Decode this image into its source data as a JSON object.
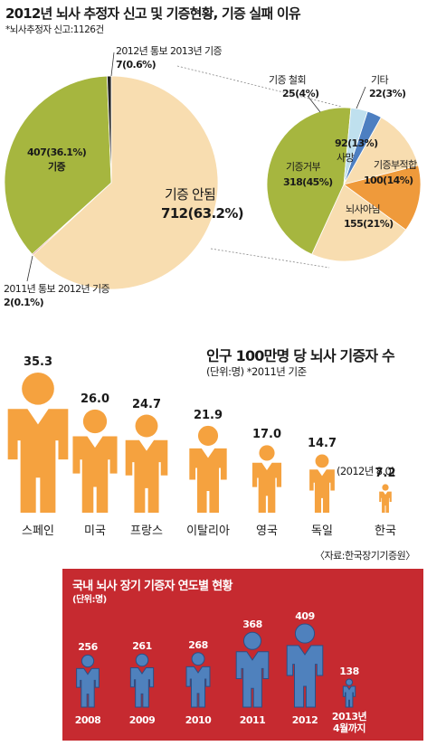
{
  "header": {
    "title": "2012년 뇌사 추정자 신고 및 기증현황, 기증 실패 이유",
    "subtitle": "*뇌사추정자 신고:1126건"
  },
  "colors": {
    "green": "#a6b63f",
    "peach": "#f8ddb0",
    "black": "#222222",
    "red": "#d2452c",
    "lightblue": "#bfe0ee",
    "blue": "#4d7fc1",
    "orange": "#ef9a3b",
    "figure_orange": "#f5a23f",
    "figure_blue": "#4f81bd",
    "banner_red": "#c62a30"
  },
  "labels": {
    "main": {
      "donated_value": "407(36.1%)",
      "donated_name": "기증",
      "not_donated_name": "기증 안됨",
      "not_donated_value": "712(63.2%)",
      "reported_2012_line1": "2012년 통보 2013년 기증",
      "reported_2012_line2": "7(0.6%)",
      "reported_2011_line1": "2011년 통보 2012년 기증",
      "reported_2011_line2": "2(0.1%)"
    },
    "sub": {
      "withdrawn_name": "기증 철회",
      "withdrawn_value": "25(4%)",
      "other_name": "기타",
      "other_value": "22(3%)",
      "death_value": "92(13%)",
      "death_name": "사망",
      "unfit_name": "기증부적합",
      "unfit_value": "100(14%)",
      "refusal_name": "기증거부",
      "refusal_value": "318(45%)",
      "notbd_name": "뇌사아님",
      "notbd_value": "155(21%)"
    }
  },
  "chart_data": [
    {
      "type": "pie",
      "title": "2012년 뇌사 추정자 신고 및 기증현황",
      "slices": [
        {
          "label": "기증 안됨",
          "value": 712,
          "percent": 63.2,
          "color": "#f8ddb0"
        },
        {
          "label": "2011년 통보 2012년 기증",
          "value": 2,
          "percent": 0.1,
          "color": "#d2452c"
        },
        {
          "label": "기증",
          "value": 407,
          "percent": 36.1,
          "color": "#a6b63f"
        },
        {
          "label": "2012년 통보 2013년 기증",
          "value": 7,
          "percent": 0.6,
          "color": "#222222"
        }
      ]
    },
    {
      "type": "pie",
      "title": "기증 실패 이유",
      "slices": [
        {
          "label": "기타",
          "value": 22,
          "percent": 3,
          "color": "#4d7fc1"
        },
        {
          "label": "사망",
          "value": 92,
          "percent": 13,
          "color": "#f8ddb0"
        },
        {
          "label": "기증부적합",
          "value": 100,
          "percent": 14,
          "color": "#ef9a3b"
        },
        {
          "label": "뇌사아님",
          "value": 155,
          "percent": 21,
          "color": "#f8ddb0"
        },
        {
          "label": "기증거부",
          "value": 318,
          "percent": 45,
          "color": "#a6b63f"
        },
        {
          "label": "기증 철회",
          "value": 25,
          "percent": 4,
          "color": "#bfe0ee"
        }
      ]
    },
    {
      "type": "bar",
      "title": "인구 100만명 당 뇌사 기증자 수",
      "subtitle": "(단위:명) *2011년 기준",
      "categories": [
        "스페인",
        "미국",
        "프랑스",
        "이탈리아",
        "영국",
        "독일",
        "한국"
      ],
      "values": [
        35.3,
        26.0,
        24.7,
        21.9,
        17.0,
        14.7,
        7.2
      ],
      "value_labels": [
        "35.3",
        "26.0",
        "24.7",
        "21.9",
        "17.0",
        "14.7",
        "7.2"
      ],
      "note": "(2012년 8.0)",
      "source": "〈자료:한국장기기증원〉"
    },
    {
      "type": "bar",
      "title": "국내 뇌사 장기 기증자 연도별 현황",
      "subtitle": "(단위:명)",
      "categories": [
        "2008",
        "2009",
        "2010",
        "2011",
        "2012",
        "2013년 4월까지"
      ],
      "values": [
        256,
        261,
        268,
        368,
        409,
        138
      ],
      "value_labels": [
        "256",
        "261",
        "268",
        "368",
        "409",
        "138"
      ]
    }
  ]
}
